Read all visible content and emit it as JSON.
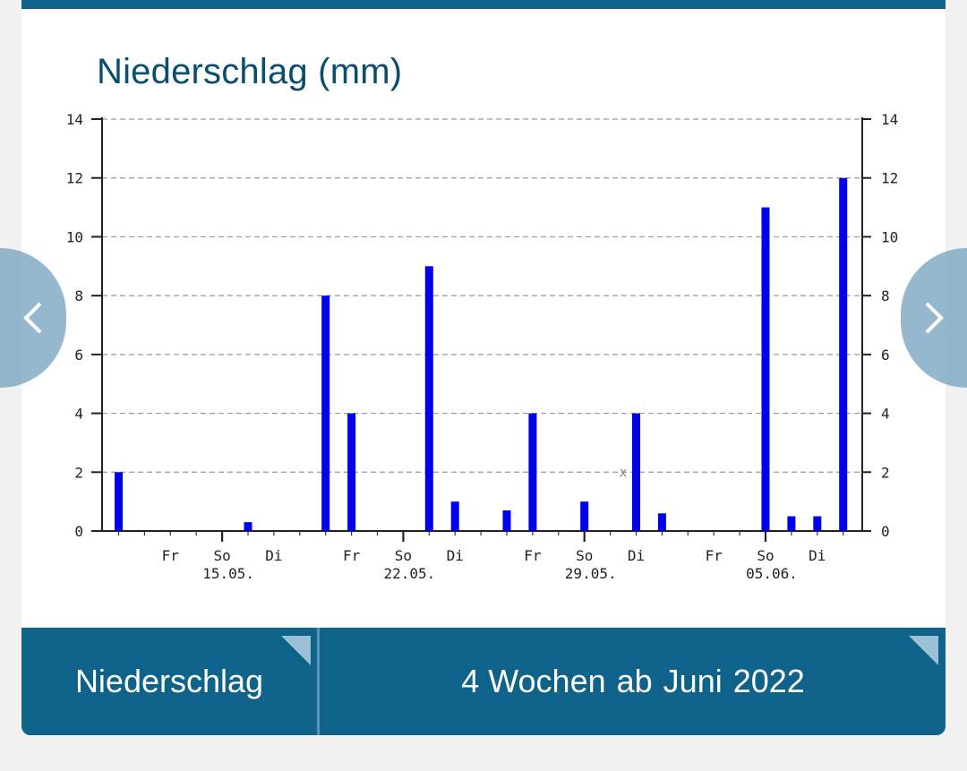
{
  "title": "Niederschlag (mm)",
  "nav": {
    "prev_icon": "chevron-left-icon",
    "next_icon": "chevron-right-icon"
  },
  "selectors": {
    "type_label": "Niederschlag",
    "range_words": [
      "4 Wochen",
      "ab",
      "Juni",
      "2022"
    ]
  },
  "colors": {
    "accent": "#0f6289",
    "title": "#0a4d6e",
    "bar": "#0000ee"
  },
  "chart_data": {
    "type": "bar",
    "title": "Niederschlag (mm)",
    "ylim": [
      0,
      14
    ],
    "yticks": [
      0,
      2,
      4,
      6,
      8,
      10,
      12,
      14
    ],
    "grid": true,
    "days": 29,
    "x_labels": [
      {
        "day": 2,
        "text": "Fr"
      },
      {
        "day": 4,
        "text": "So"
      },
      {
        "day": 6,
        "text": "Di"
      },
      {
        "day": 9,
        "text": "Fr"
      },
      {
        "day": 11,
        "text": "So"
      },
      {
        "day": 13,
        "text": "Di"
      },
      {
        "day": 16,
        "text": "Fr"
      },
      {
        "day": 18,
        "text": "So"
      },
      {
        "day": 20,
        "text": "Di"
      },
      {
        "day": 23,
        "text": "Fr"
      },
      {
        "day": 25,
        "text": "So"
      },
      {
        "day": 27,
        "text": "Di"
      }
    ],
    "date_labels": [
      {
        "day": 4,
        "text": "15.05."
      },
      {
        "day": 11,
        "text": "22.05."
      },
      {
        "day": 18,
        "text": "29.05."
      },
      {
        "day": 25,
        "text": "05.06."
      }
    ],
    "week_ticks": [
      4,
      11,
      18,
      25
    ],
    "missing_marker": {
      "day": 19.5,
      "value": 2,
      "text": "x"
    },
    "bars": [
      {
        "day": 0,
        "value": 2
      },
      {
        "day": 5,
        "value": 0.3
      },
      {
        "day": 8,
        "value": 8
      },
      {
        "day": 9,
        "value": 4
      },
      {
        "day": 12,
        "value": 9
      },
      {
        "day": 13,
        "value": 1
      },
      {
        "day": 15,
        "value": 0.7
      },
      {
        "day": 16,
        "value": 4
      },
      {
        "day": 18,
        "value": 1
      },
      {
        "day": 20,
        "value": 4
      },
      {
        "day": 21,
        "value": 0.6
      },
      {
        "day": 25,
        "value": 11
      },
      {
        "day": 26,
        "value": 0.5
      },
      {
        "day": 27,
        "value": 0.5
      },
      {
        "day": 28,
        "value": 12
      }
    ]
  }
}
